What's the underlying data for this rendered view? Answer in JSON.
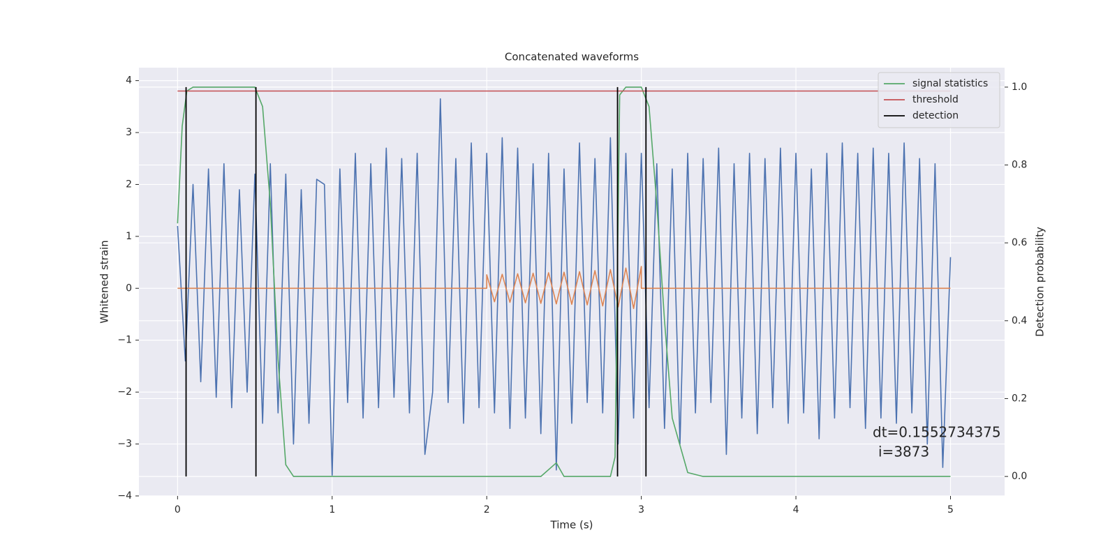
{
  "chart_data": {
    "type": "line",
    "title": "Concatenated waveforms",
    "xlabel": "Time (s)",
    "ylabel": "Whitened strain",
    "y2label": "Detection probability",
    "xlim": [
      -0.25,
      5.35
    ],
    "ylim": [
      -4,
      4.25
    ],
    "y2lim": [
      -0.05,
      1.05
    ],
    "xticks": [
      0,
      1,
      2,
      3,
      4,
      5
    ],
    "yticks": [
      {
        "value": -4,
        "label": "−4"
      },
      {
        "value": -3,
        "label": "−3"
      },
      {
        "value": -2,
        "label": "−2"
      },
      {
        "value": -1,
        "label": "−1"
      },
      0,
      1,
      2,
      3,
      4
    ],
    "y2ticks": [
      {
        "value": 0,
        "label": "0.0"
      },
      0.2,
      0.4,
      0.6,
      0.8,
      {
        "value": 1,
        "label": "1.0"
      }
    ],
    "grid": true,
    "legend": "upper right",
    "series": [
      {
        "color": "#4c72b0",
        "x": [
          0,
          0.05,
          0.1,
          0.15,
          0.2,
          0.25,
          0.3,
          0.35,
          0.4,
          0.45,
          0.5,
          0.55,
          0.6,
          0.65,
          0.7,
          0.75,
          0.8,
          0.85,
          0.9,
          0.95,
          1,
          1.05,
          1.1,
          1.15,
          1.2,
          1.25,
          1.3,
          1.35,
          1.4,
          1.45,
          1.5,
          1.55,
          1.6,
          1.65,
          1.7,
          1.75,
          1.8,
          1.85,
          1.9,
          1.95,
          2,
          2.05,
          2.1,
          2.15,
          2.2,
          2.25,
          2.3,
          2.35,
          2.4,
          2.45,
          2.5,
          2.55,
          2.6,
          2.65,
          2.7,
          2.75,
          2.8,
          2.85,
          2.9,
          2.95,
          3,
          3.05,
          3.1,
          3.15,
          3.2,
          3.25,
          3.3,
          3.35,
          3.4,
          3.45,
          3.5,
          3.55,
          3.6,
          3.65,
          3.7,
          3.75,
          3.8,
          3.85,
          3.9,
          3.95,
          4,
          4.05,
          4.1,
          4.15,
          4.2,
          4.25,
          4.3,
          4.35,
          4.4,
          4.45,
          4.5,
          4.55,
          4.6,
          4.65,
          4.7,
          4.75,
          4.8,
          4.85,
          4.9,
          4.95,
          5
        ],
        "values": [
          1.2,
          -1.4,
          2.0,
          -1.8,
          2.3,
          -2.1,
          2.4,
          -2.3,
          1.9,
          -2.0,
          2.2,
          -2.6,
          2.4,
          -2.4,
          2.2,
          -3.0,
          1.9,
          -2.6,
          2.1,
          2.0,
          -3.6,
          2.3,
          -2.2,
          2.6,
          -2.5,
          2.4,
          -2.3,
          2.7,
          -2.1,
          2.5,
          -2.4,
          2.6,
          -3.2,
          -2.0,
          3.65,
          -2.2,
          2.5,
          -2.6,
          2.8,
          -2.3,
          2.6,
          -2.4,
          2.9,
          -2.7,
          2.7,
          -2.5,
          2.4,
          -2.8,
          2.6,
          -3.5,
          2.3,
          -2.6,
          2.8,
          -2.2,
          2.5,
          -2.4,
          2.9,
          -3.0,
          2.6,
          -2.5,
          2.6,
          -2.3,
          2.4,
          -2.7,
          2.3,
          -3.0,
          2.6,
          -2.4,
          2.5,
          -2.2,
          2.7,
          -3.2,
          2.4,
          -2.5,
          2.6,
          -2.8,
          2.5,
          -2.3,
          2.7,
          -2.6,
          2.6,
          -2.4,
          2.3,
          -2.9,
          2.6,
          -2.5,
          2.8,
          -2.3,
          2.6,
          -2.7,
          2.7,
          -2.5,
          2.6,
          -2.6,
          2.8,
          -2.4,
          2.5,
          -3.0,
          2.4,
          -3.45,
          0.6
        ]
      },
      {
        "color": "#dd8452",
        "x": [
          0,
          2,
          2,
          2.05,
          2.1,
          2.15,
          2.2,
          2.25,
          2.3,
          2.35,
          2.4,
          2.45,
          2.5,
          2.55,
          2.6,
          2.65,
          2.7,
          2.75,
          2.8,
          2.85,
          2.9,
          2.95,
          3,
          3,
          5
        ],
        "values": [
          0,
          0,
          0.26,
          -0.26,
          0.27,
          -0.27,
          0.28,
          -0.28,
          0.29,
          -0.29,
          0.3,
          -0.3,
          0.31,
          -0.31,
          0.32,
          -0.32,
          0.34,
          -0.34,
          0.36,
          -0.36,
          0.39,
          -0.39,
          0.42,
          0,
          0
        ]
      },
      {
        "name": "signal statistics",
        "color": "#55a868",
        "axis": "y2",
        "x": [
          0,
          0.03,
          0.06,
          0.1,
          0.5,
          0.55,
          0.6,
          0.65,
          0.7,
          0.75,
          2.35,
          2.45,
          2.5,
          2.8,
          2.83,
          2.86,
          2.9,
          3.0,
          3.05,
          3.1,
          3.15,
          3.2,
          3.3,
          3.4,
          5
        ],
        "values": [
          0.65,
          0.9,
          0.99,
          1.0,
          1.0,
          0.95,
          0.7,
          0.3,
          0.03,
          0.0,
          0.0,
          0.035,
          0.0,
          0.0,
          0.05,
          0.98,
          1.0,
          1.0,
          0.95,
          0.7,
          0.4,
          0.15,
          0.01,
          0.0,
          0.0
        ]
      },
      {
        "name": "threshold",
        "color": "#c44e52",
        "axis": "y2",
        "x": [
          0,
          5
        ],
        "values": [
          0.99,
          0.99
        ]
      }
    ],
    "detection": {
      "name": "detection",
      "color": "#000000",
      "axis": "y2",
      "x": [
        0.055,
        0.507,
        2.846,
        3.03
      ],
      "ymin": 0,
      "ymax": 1
    },
    "annotation": [
      "dt=0.1552734375",
      "i=3873"
    ]
  }
}
